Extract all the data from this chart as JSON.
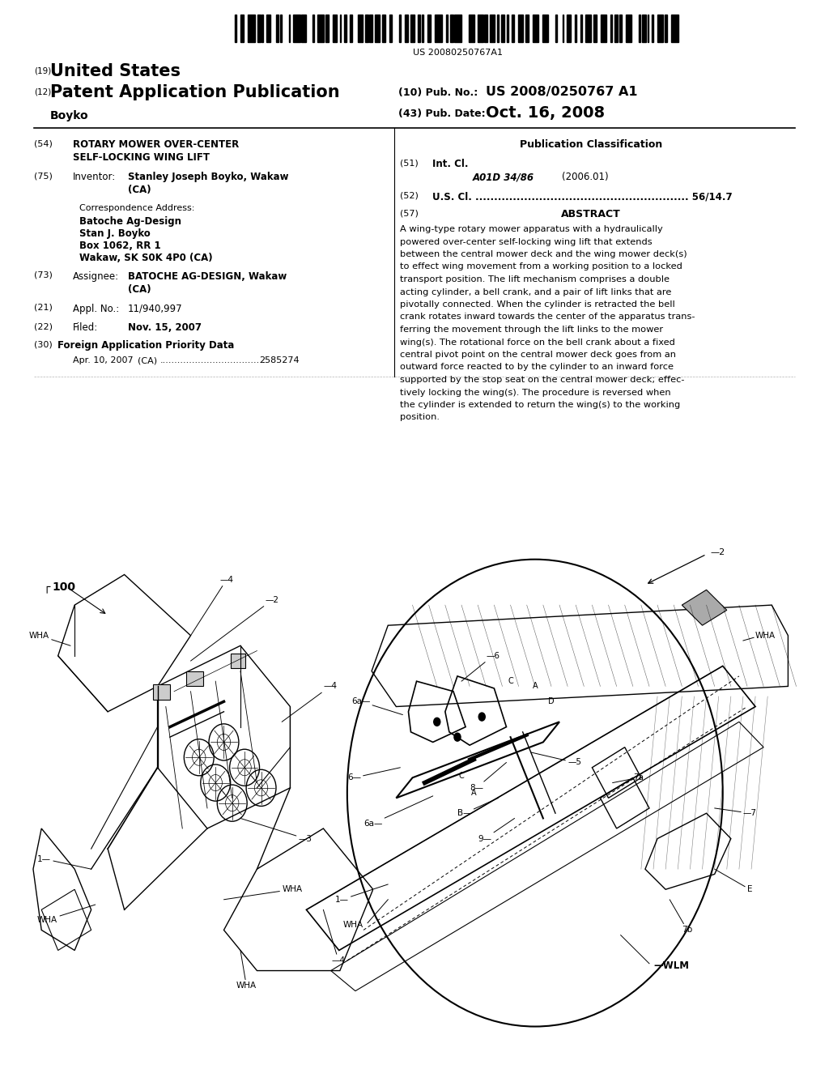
{
  "page_bg": "#ffffff",
  "barcode_text": "US 20080250767A1",
  "patent_number_label": "(19)",
  "patent_title_us": "United States",
  "pub_label": "(12)",
  "pub_title": "Patent Application Publication",
  "pub_num_label": "(10) Pub. No.:",
  "pub_num": "US 2008/0250767 A1",
  "inventor_label": "Boyko",
  "pub_date_label": "(43) Pub. Date:",
  "pub_date": "Oct. 16, 2008",
  "section54_label": "(54)",
  "section54_title1": "ROTARY MOWER OVER-CENTER",
  "section54_title2": "SELF-LOCKING WING LIFT",
  "section75_label": "(75)",
  "section75_title": "Inventor:",
  "section75_name": "Stanley Joseph Boyko, Wakaw",
  "section75_country": "(CA)",
  "corr_title": "Correspondence Address:",
  "corr_line1": "Batoche Ag-Design",
  "corr_line2": "Stan J. Boyko",
  "corr_line3": "Box 1062, RR 1",
  "corr_line4": "Wakaw, SK S0K 4P0 (CA)",
  "section73_label": "(73)",
  "section73_title": "Assignee:",
  "section73_name": "BATOCHE AG-DESIGN, Wakaw",
  "section73_country": "(CA)",
  "section21_label": "(21)",
  "section21_title": "Appl. No.:",
  "section21_val": "11/940,997",
  "section22_label": "(22)",
  "section22_title": "Filed:",
  "section22_val": "Nov. 15, 2007",
  "section30_label": "(30)",
  "section30_title": "Foreign Application Priority Data",
  "section30_date": "Apr. 10, 2007",
  "section30_country": "(CA)",
  "section30_dots": "....................................",
  "section30_num": "2585274",
  "pub_class_title": "Publication Classification",
  "section51_label": "(51)",
  "section51_title": "Int. Cl.",
  "section51_class": "A01D 34/86",
  "section51_year": "(2006.01)",
  "section52_label": "(52)",
  "section52_text": "U.S. Cl. ......................................................... 56/14.7",
  "section57_label": "(57)",
  "section57_title": "ABSTRACT",
  "abstract_lines": [
    "A wing-type rotary mower apparatus with a hydraulically",
    "powered over-center self-locking wing lift that extends",
    "between the central mower deck and the wing mower deck(s)",
    "to effect wing movement from a working position to a locked",
    "transport position. The lift mechanism comprises a double",
    "acting cylinder, a bell crank, and a pair of lift links that are",
    "pivotally connected. When the cylinder is retracted the bell",
    "crank rotates inward towards the center of the apparatus trans-",
    "ferring the movement through the lift links to the mower",
    "wing(s). The rotational force on the bell crank about a fixed",
    "central pivot point on the central mower deck goes from an",
    "outward force reacted to by the cylinder to an inward force",
    "supported by the stop seat on the central mower deck; effec-",
    "tively locking the wing(s). The procedure is reversed when",
    "the cylinder is extended to return the wing(s) to the working",
    "position."
  ]
}
